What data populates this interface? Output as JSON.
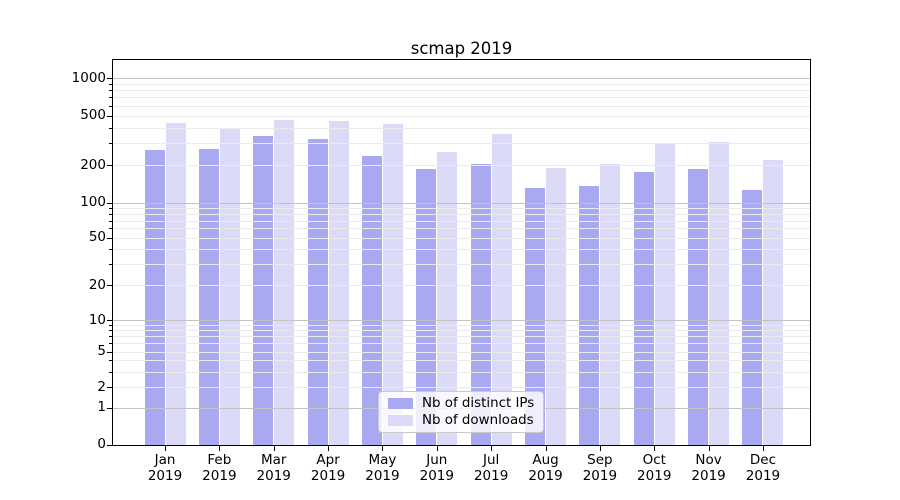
{
  "chart_data": {
    "type": "bar",
    "title": "scmap 2019",
    "categories": [
      "Jan\n2019",
      "Feb\n2019",
      "Mar\n2019",
      "Apr\n2019",
      "May\n2019",
      "Jun\n2019",
      "Jul\n2019",
      "Aug\n2019",
      "Sep\n2019",
      "Oct\n2019",
      "Nov\n2019",
      "Dec\n2019"
    ],
    "series": [
      {
        "name": "Nb of distinct IPs",
        "color": "#a9a9f2",
        "values": [
          265,
          270,
          345,
          325,
          235,
          185,
          205,
          130,
          137,
          175,
          185,
          126
        ]
      },
      {
        "name": "Nb of downloads",
        "color": "#dbdbf8",
        "values": [
          435,
          400,
          460,
          455,
          425,
          255,
          355,
          190,
          205,
          295,
          305,
          220
        ]
      }
    ],
    "xlabel": "",
    "ylabel": "",
    "yscale": "symlog",
    "ylim": [
      0,
      1000
    ],
    "yticks_labeled": [
      0,
      1,
      2,
      5,
      10,
      20,
      50,
      100,
      200,
      500,
      1000
    ],
    "yticks_major": [
      1,
      10,
      100,
      1000
    ],
    "yticks_minor_unlabeled": [
      3,
      4,
      6,
      7,
      8,
      9,
      30,
      40,
      60,
      70,
      80,
      90,
      300,
      400,
      600,
      700,
      800,
      900
    ],
    "grid": "both",
    "grid_major_color": "#c3c3c3",
    "grid_minor_color": "#ebebeb",
    "legend": {
      "position": "lower center",
      "entries": [
        "Nb of distinct IPs",
        "Nb of downloads"
      ]
    }
  }
}
